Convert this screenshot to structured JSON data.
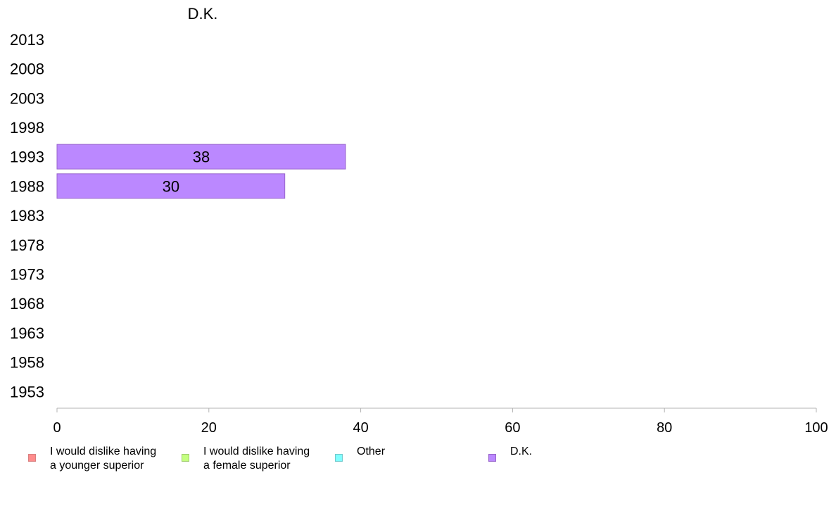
{
  "chart_data": {
    "type": "bar",
    "orientation": "horizontal",
    "panel_title": "D.K.",
    "categories": [
      "2013",
      "2008",
      "2003",
      "1998",
      "1993",
      "1988",
      "1983",
      "1978",
      "1973",
      "1968",
      "1963",
      "1958",
      "1953"
    ],
    "series": [
      {
        "name": "I would dislike having a younger superior",
        "values": [
          null,
          null,
          null,
          null,
          null,
          null,
          null,
          null,
          null,
          null,
          null,
          null,
          null
        ]
      },
      {
        "name": "I would dislike having a female superior",
        "values": [
          null,
          null,
          null,
          null,
          null,
          null,
          null,
          null,
          null,
          null,
          null,
          null,
          null
        ]
      },
      {
        "name": "Other",
        "values": [
          null,
          null,
          null,
          null,
          null,
          null,
          null,
          null,
          null,
          null,
          null,
          null,
          null
        ]
      },
      {
        "name": "D.K.",
        "values": [
          null,
          null,
          null,
          null,
          38,
          30,
          null,
          null,
          null,
          null,
          null,
          null,
          null
        ]
      }
    ],
    "xlim": [
      0,
      100
    ],
    "xticks": [
      "0",
      "20",
      "40",
      "60",
      "80",
      "100"
    ],
    "grid": false,
    "legend_position": "bottom"
  },
  "legend": [
    {
      "line1": "I would dislike having",
      "line2": "a younger superior",
      "color": "#ff8c8c",
      "border": "#d98080"
    },
    {
      "line1": "I would dislike having",
      "line2": "a female superior",
      "color": "#c4ff80",
      "border": "#a0cc70"
    },
    {
      "line1": "Other",
      "line2": "",
      "color": "#80ffff",
      "border": "#70c8cc"
    },
    {
      "line1": "D.K.",
      "line2": "",
      "color": "#bb88ff",
      "border": "#9966cc"
    }
  ]
}
